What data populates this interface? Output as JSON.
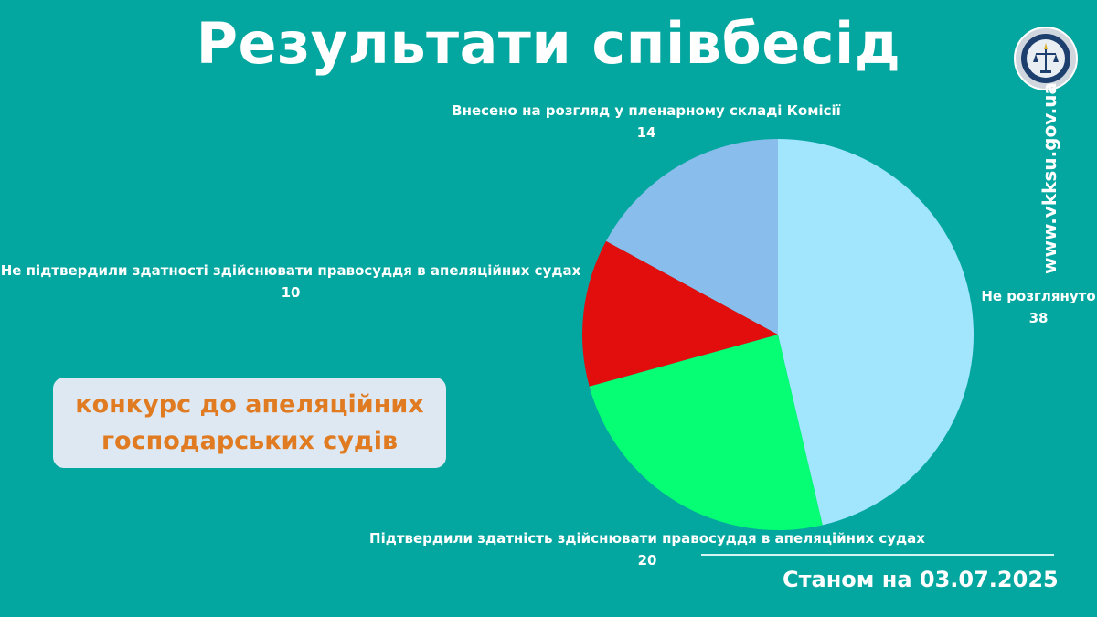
{
  "title": "Результати співбесід",
  "badge": {
    "line1": "конкурс до апеляційних",
    "line2": "господарських судів"
  },
  "site": "www.vkksu.gov.ua",
  "date_label": "Станом на 03.07.2025",
  "chart_data": {
    "type": "pie",
    "slices": [
      {
        "name": "Не розглянуто",
        "value": 38,
        "color": "#a2e6fe"
      },
      {
        "name": "Підтвердили здатність здійснювати правосуддя в апеляційних судах",
        "value": 20,
        "color": "#05fe73"
      },
      {
        "name": "Не підтвердили здатності здійснювати правосуддя в апеляційних судах",
        "value": 10,
        "color": "#e20e0e"
      },
      {
        "name": "Внесено на розгляд у пленарному складі Комісії",
        "value": 14,
        "color": "#89bdec"
      }
    ]
  }
}
